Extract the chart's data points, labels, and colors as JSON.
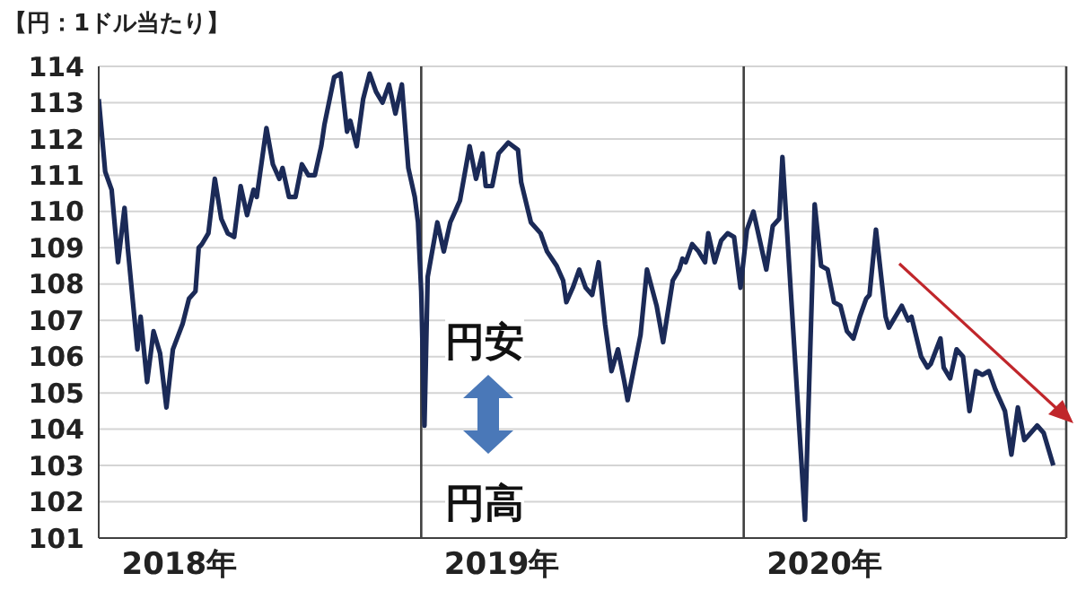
{
  "chart_data": {
    "type": "line",
    "ylabel": "【円：1ドル当たり】",
    "x": [
      2018.0,
      2018.02,
      2018.04,
      2018.06,
      2018.08,
      2018.09,
      2018.12,
      2018.13,
      2018.15,
      2018.17,
      2018.19,
      2018.21,
      2018.23,
      2018.26,
      2018.28,
      2018.3,
      2018.31,
      2018.32,
      2018.34,
      2018.36,
      2018.38,
      2018.4,
      2018.42,
      2018.44,
      2018.46,
      2018.48,
      2018.49,
      2018.52,
      2018.54,
      2018.56,
      2018.57,
      2018.59,
      2018.61,
      2018.63,
      2018.65,
      2018.67,
      2018.69,
      2018.7,
      2018.73,
      2018.75,
      2018.77,
      2018.78,
      2018.8,
      2018.82,
      2018.84,
      2018.86,
      2018.88,
      2018.9,
      2018.92,
      2018.94,
      2018.96,
      2018.98,
      2018.99,
      2019.0,
      2019.01,
      2019.02,
      2019.05,
      2019.07,
      2019.09,
      2019.12,
      2019.15,
      2019.17,
      2019.19,
      2019.2,
      2019.22,
      2019.24,
      2019.27,
      2019.3,
      2019.31,
      2019.34,
      2019.37,
      2019.39,
      2019.42,
      2019.44,
      2019.45,
      2019.47,
      2019.49,
      2019.51,
      2019.53,
      2019.55,
      2019.57,
      2019.59,
      2019.61,
      2019.63,
      2019.64,
      2019.68,
      2019.7,
      2019.73,
      2019.75,
      2019.78,
      2019.8,
      2019.81,
      2019.82,
      2019.84,
      2019.86,
      2019.88,
      2019.89,
      2019.91,
      2019.93,
      2019.95,
      2019.97,
      2019.99,
      2020.01,
      2020.03,
      2020.07,
      2020.09,
      2020.11,
      2020.12,
      2020.19,
      2020.22,
      2020.24,
      2020.26,
      2020.28,
      2020.3,
      2020.32,
      2020.34,
      2020.36,
      2020.38,
      2020.39,
      2020.41,
      2020.44,
      2020.45,
      2020.49,
      2020.51,
      2020.52,
      2020.55,
      2020.57,
      2020.58,
      2020.61,
      2020.62,
      2020.64,
      2020.66,
      2020.68,
      2020.7,
      2020.72,
      2020.74,
      2020.76,
      2020.78,
      2020.8,
      2020.81,
      2020.83,
      2020.85,
      2020.87,
      2020.89,
      2020.91,
      2020.93,
      2020.96
    ],
    "series": [
      {
        "color": "#1b2a57",
        "values": [
          113.1,
          111.1,
          110.6,
          108.6,
          110.1,
          109.0,
          106.2,
          107.1,
          105.3,
          106.7,
          106.1,
          104.6,
          106.2,
          106.9,
          107.6,
          107.8,
          109.0,
          109.1,
          109.4,
          110.9,
          109.8,
          109.4,
          109.3,
          110.7,
          109.9,
          110.6,
          110.4,
          112.3,
          111.3,
          110.9,
          111.2,
          110.4,
          110.4,
          111.3,
          111.0,
          111.0,
          111.8,
          112.4,
          113.7,
          113.8,
          112.2,
          112.5,
          111.8,
          113.1,
          113.8,
          113.3,
          113.0,
          113.5,
          112.7,
          113.5,
          111.2,
          110.4,
          109.7,
          107.8,
          104.1,
          108.2,
          109.7,
          108.9,
          109.7,
          110.3,
          111.8,
          110.9,
          111.6,
          110.7,
          110.7,
          111.6,
          111.9,
          111.7,
          110.8,
          109.7,
          109.4,
          108.9,
          108.5,
          108.1,
          107.5,
          107.9,
          108.4,
          107.9,
          107.7,
          108.6,
          106.9,
          105.6,
          106.2,
          105.3,
          104.8,
          106.6,
          108.4,
          107.4,
          106.4,
          108.1,
          108.4,
          108.7,
          108.6,
          109.1,
          108.9,
          108.6,
          109.4,
          108.6,
          109.2,
          109.4,
          109.3,
          107.9,
          109.5,
          110.0,
          108.4,
          109.6,
          109.8,
          111.5,
          101.5,
          110.2,
          108.5,
          108.4,
          107.5,
          107.4,
          106.7,
          106.5,
          107.1,
          107.6,
          107.7,
          109.5,
          107.1,
          106.8,
          107.4,
          107.0,
          107.1,
          106.0,
          105.7,
          105.8,
          106.5,
          105.7,
          105.4,
          106.2,
          106.0,
          104.5,
          105.6,
          105.5,
          105.6,
          105.1,
          104.7,
          104.5,
          103.3,
          104.6,
          103.7,
          103.9,
          104.1,
          103.9,
          103.0
        ]
      }
    ],
    "xlim": [
      2018,
      2021
    ],
    "xticks": [
      {
        "value": 2018.25,
        "label": "2018年"
      },
      {
        "value": 2019.25,
        "label": "2019年"
      },
      {
        "value": 2020.25,
        "label": "2020年"
      }
    ],
    "ylim": [
      101,
      114
    ],
    "yticks": [
      101,
      102,
      103,
      104,
      105,
      106,
      107,
      108,
      109,
      110,
      111,
      112,
      113,
      114
    ],
    "grid": "y",
    "ref_lines": [
      {
        "axis": "x",
        "value": 2019,
        "color": "#404040"
      },
      {
        "axis": "x",
        "value": 2020,
        "color": "#404040"
      },
      {
        "axis": "x",
        "value": 2021,
        "color": "#404040"
      }
    ],
    "annotations": [
      "円安",
      "円高"
    ]
  }
}
